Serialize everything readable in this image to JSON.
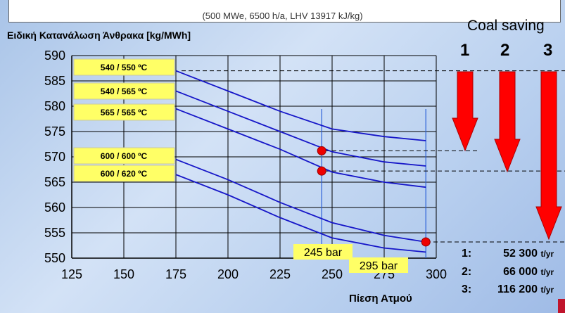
{
  "subtitle": "(500 MWe, 6500 h/a, LHV 13917 kJ/kg)",
  "chart_data": {
    "type": "line",
    "ylabel": "Ειδική Κατανάλωση Άνθρακα [kg/MWh]",
    "xlabel": "Πίεση Ατμού",
    "xlim": [
      125,
      300
    ],
    "ylim": [
      550,
      590
    ],
    "xticks": [
      "125",
      "150",
      "175",
      "200",
      "225",
      "250",
      "275",
      "300"
    ],
    "yticks": [
      "550",
      "555",
      "560",
      "565",
      "570",
      "575",
      "580",
      "585",
      "590"
    ],
    "grid": true,
    "series": [
      {
        "name": "540 / 550  ºC",
        "points": [
          [
            175,
            587.0
          ],
          [
            200,
            583.0
          ],
          [
            225,
            579.0
          ],
          [
            250,
            575.5
          ],
          [
            275,
            574.0
          ],
          [
            295,
            573.2
          ]
        ]
      },
      {
        "name": "540 / 565  ºC",
        "points": [
          [
            175,
            583.0
          ],
          [
            200,
            579.0
          ],
          [
            225,
            575.0
          ],
          [
            250,
            571.0
          ],
          [
            275,
            569.0
          ],
          [
            295,
            568.2
          ]
        ]
      },
      {
        "name": "565 / 565  ºC",
        "points": [
          [
            175,
            579.5
          ],
          [
            200,
            575.5
          ],
          [
            225,
            571.5
          ],
          [
            250,
            567.0
          ],
          [
            275,
            565.0
          ],
          [
            295,
            564.0
          ]
        ]
      },
      {
        "name": "600 / 600  ºC",
        "points": [
          [
            175,
            569.5
          ],
          [
            200,
            565.5
          ],
          [
            225,
            561.0
          ],
          [
            250,
            557.0
          ],
          [
            275,
            554.5
          ],
          [
            295,
            553.2
          ]
        ]
      },
      {
        "name": "600 / 620  ºC",
        "points": [
          [
            175,
            566.5
          ],
          [
            200,
            562.5
          ],
          [
            225,
            558.0
          ],
          [
            250,
            554.0
          ],
          [
            275,
            552.0
          ],
          [
            295,
            551.2
          ]
        ]
      }
    ],
    "markers": [
      [
        245,
        571.2
      ],
      [
        245,
        567.2
      ],
      [
        295,
        553.2
      ]
    ],
    "pressure_lines": [
      {
        "x": 245,
        "label": "245 bar"
      },
      {
        "x": 295,
        "label": "295 bar"
      }
    ],
    "reference_levels": [
      587.0,
      571.2,
      567.2,
      553.2
    ]
  },
  "coal_saving": {
    "title": "Coal saving",
    "arrows": [
      "1",
      "2",
      "3"
    ],
    "rows": [
      {
        "idx": "1:",
        "value": "52 300",
        "unit": "t/yr"
      },
      {
        "idx": "2:",
        "value": "66 000",
        "unit": "t/yr"
      },
      {
        "idx": "3:",
        "value": "116 200",
        "unit": "t/yr"
      }
    ]
  },
  "colors": {
    "curve": "#1616c8",
    "label_bg": "#ffff66",
    "arrow": "#ff0000",
    "marker": "#ee0000"
  }
}
